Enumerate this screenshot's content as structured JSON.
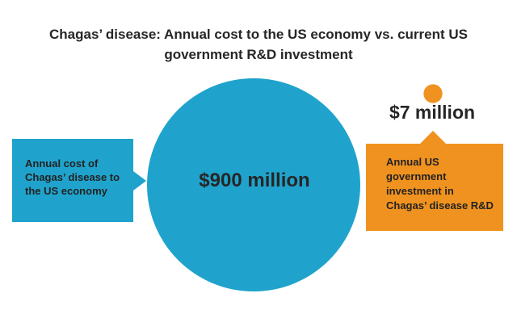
{
  "title_lines": [
    "Chagas’ disease: Annual cost to the US economy vs. current US",
    "government R&D investment"
  ],
  "colors": {
    "cost": "#1fa3cc",
    "investment": "#f0921f"
  },
  "chart_data": {
    "type": "bubble",
    "title": "Chagas’ disease: Annual cost to the US economy vs. current US government R&D investment",
    "unit": "million USD",
    "series": [
      {
        "value": 900,
        "value_label": "$900 million",
        "description_lines": [
          "Annual cost of",
          "Chagas’ disease to",
          "the US economy"
        ]
      },
      {
        "value": 7,
        "value_label": "$7 million",
        "description_lines": [
          "Annual US",
          "government",
          "investment in",
          "Chagas’ disease R&D"
        ]
      }
    ]
  }
}
